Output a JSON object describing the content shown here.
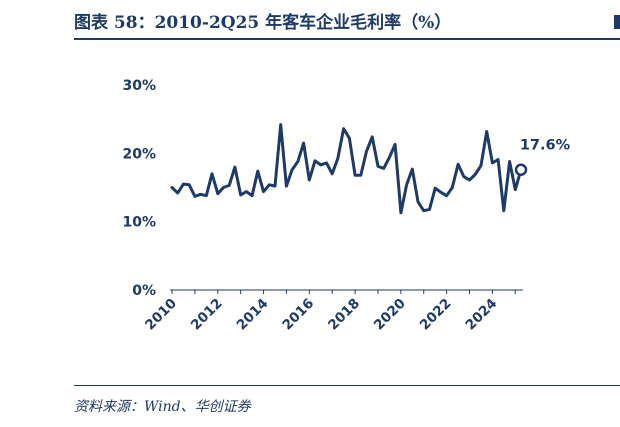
{
  "figure": {
    "title": "图表 58：2010-2Q25 年客车企业毛利率（%）",
    "source": "资料来源：Wind、华创证券"
  },
  "colors": {
    "primary": "#1e3a66",
    "background": "#ffffff"
  },
  "chart_data": {
    "type": "line",
    "title": "",
    "xlabel": "",
    "ylabel": "",
    "ylim": [
      0,
      30
    ],
    "yticks": [
      "0%",
      "10%",
      "20%",
      "30%"
    ],
    "yvalues": [
      0,
      10,
      20,
      30
    ],
    "xticks": [
      "2010",
      "2012",
      "2014",
      "2016",
      "2018",
      "2020",
      "2022",
      "2024"
    ],
    "grid": false,
    "legend": "none",
    "series": [
      {
        "values": [
          15.0,
          14.2,
          15.5,
          15.4,
          13.7,
          14.0,
          13.8,
          17.0,
          14.1,
          15.0,
          15.3,
          18.0,
          13.9,
          14.4,
          13.8,
          17.4,
          14.4,
          15.4,
          15.2,
          24.2,
          15.2,
          17.6,
          18.8,
          21.5,
          16.1,
          18.9,
          18.3,
          18.6,
          17.0,
          19.3,
          23.6,
          22.2,
          16.8,
          16.8,
          20.3,
          22.4,
          18.1,
          17.8,
          19.4,
          21.3,
          11.3,
          15.4,
          17.7,
          12.9,
          11.6,
          11.8,
          14.9,
          14.3,
          13.8,
          15.0,
          18.4,
          16.6,
          16.1,
          16.9,
          18.2,
          23.2,
          18.6,
          19.1,
          11.6,
          18.8,
          14.7,
          17.6
        ]
      }
    ],
    "last_point_label": "17.6%"
  }
}
